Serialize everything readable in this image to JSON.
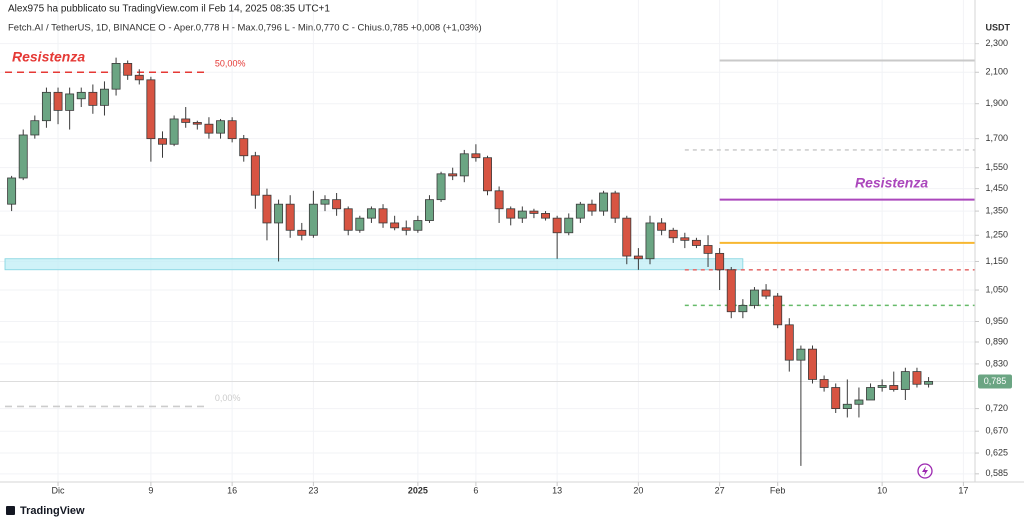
{
  "chart_data": {
    "type": "candlestick",
    "title": "Alex975 ha pubblicato su TradingView.com il Feb 14, 2025 08:35 UTC+1",
    "subtitle": "Fetch.AI / TetherUS, 1D, BINANCE  O - Aper.0,778  H - Max.0,796  L - Min.0,770  C - Chius.0,785  +0,008 (+1,03%)",
    "y_label": "USDT",
    "brand": "TradingView",
    "log": true,
    "grid": true,
    "up_color": "#6ba583",
    "down_color": "#d75442",
    "wick_color": "#3a3a3a",
    "x": [
      "2024-11-27",
      "2024-11-28",
      "2024-11-29",
      "2024-11-30",
      "2024-12-01",
      "2024-12-02",
      "2024-12-03",
      "2024-12-04",
      "2024-12-05",
      "2024-12-06",
      "2024-12-07",
      "2024-12-08",
      "2024-12-09",
      "2024-12-10",
      "2024-12-11",
      "2024-12-12",
      "2024-12-13",
      "2024-12-14",
      "2024-12-15",
      "2024-12-16",
      "2024-12-17",
      "2024-12-18",
      "2024-12-19",
      "2024-12-20",
      "2024-12-21",
      "2024-12-22",
      "2024-12-23",
      "2024-12-24",
      "2024-12-25",
      "2024-12-26",
      "2024-12-27",
      "2024-12-28",
      "2024-12-29",
      "2024-12-30",
      "2024-12-31",
      "2025-01-01",
      "2025-01-02",
      "2025-01-03",
      "2025-01-04",
      "2025-01-05",
      "2025-01-06",
      "2025-01-07",
      "2025-01-08",
      "2025-01-09",
      "2025-01-10",
      "2025-01-11",
      "2025-01-12",
      "2025-01-13",
      "2025-01-14",
      "2025-01-15",
      "2025-01-16",
      "2025-01-17",
      "2025-01-18",
      "2025-01-19",
      "2025-01-20",
      "2025-01-21",
      "2025-01-22",
      "2025-01-23",
      "2025-01-24",
      "2025-01-25",
      "2025-01-26",
      "2025-01-27",
      "2025-01-28",
      "2025-01-29",
      "2025-01-30",
      "2025-01-31",
      "2025-02-01",
      "2025-02-02",
      "2025-02-03",
      "2025-02-04",
      "2025-02-05",
      "2025-02-06",
      "2025-02-07",
      "2025-02-08",
      "2025-02-09",
      "2025-02-10",
      "2025-02-11",
      "2025-02-12",
      "2025-02-13",
      "2025-02-14"
    ],
    "open": [
      1.38,
      1.5,
      1.72,
      1.8,
      1.97,
      1.86,
      1.93,
      1.97,
      1.89,
      1.99,
      2.16,
      2.08,
      2.05,
      1.7,
      1.67,
      1.81,
      1.79,
      1.78,
      1.73,
      1.8,
      1.7,
      1.61,
      1.42,
      1.3,
      1.38,
      1.27,
      1.25,
      1.38,
      1.4,
      1.36,
      1.27,
      1.32,
      1.36,
      1.3,
      1.28,
      1.27,
      1.31,
      1.4,
      1.52,
      1.51,
      1.62,
      1.6,
      1.44,
      1.36,
      1.32,
      1.35,
      1.34,
      1.32,
      1.26,
      1.32,
      1.38,
      1.35,
      1.43,
      1.32,
      1.17,
      1.16,
      1.3,
      1.27,
      1.24,
      1.23,
      1.21,
      1.18,
      1.12,
      0.98,
      1.0,
      1.05,
      1.03,
      0.94,
      0.84,
      0.87,
      0.79,
      0.77,
      0.72,
      0.73,
      0.74,
      0.77,
      0.775,
      0.765,
      0.81,
      0.778
    ],
    "high": [
      1.51,
      1.75,
      1.83,
      2.0,
      2.0,
      2.0,
      2.0,
      2.02,
      2.04,
      2.2,
      2.18,
      2.12,
      2.07,
      1.74,
      1.83,
      1.88,
      1.8,
      1.82,
      1.81,
      1.82,
      1.72,
      1.63,
      1.45,
      1.4,
      1.42,
      1.3,
      1.44,
      1.42,
      1.43,
      1.37,
      1.33,
      1.37,
      1.38,
      1.33,
      1.31,
      1.33,
      1.42,
      1.53,
      1.55,
      1.64,
      1.67,
      1.61,
      1.46,
      1.37,
      1.37,
      1.36,
      1.35,
      1.33,
      1.34,
      1.39,
      1.4,
      1.44,
      1.44,
      1.33,
      1.2,
      1.33,
      1.32,
      1.28,
      1.26,
      1.24,
      1.25,
      1.2,
      1.13,
      1.02,
      1.06,
      1.07,
      1.04,
      0.96,
      0.88,
      0.88,
      0.8,
      0.78,
      0.79,
      0.77,
      0.78,
      0.79,
      0.81,
      0.82,
      0.82,
      0.796
    ],
    "low": [
      1.35,
      1.49,
      1.7,
      1.76,
      1.78,
      1.75,
      1.88,
      1.84,
      1.83,
      1.95,
      2.05,
      2.02,
      1.58,
      1.6,
      1.66,
      1.76,
      1.75,
      1.7,
      1.7,
      1.68,
      1.58,
      1.36,
      1.23,
      1.15,
      1.24,
      1.23,
      1.24,
      1.35,
      1.33,
      1.25,
      1.26,
      1.3,
      1.28,
      1.27,
      1.25,
      1.26,
      1.3,
      1.39,
      1.49,
      1.48,
      1.58,
      1.42,
      1.3,
      1.29,
      1.3,
      1.32,
      1.31,
      1.16,
      1.25,
      1.3,
      1.33,
      1.33,
      1.3,
      1.14,
      1.12,
      1.14,
      1.25,
      1.22,
      1.2,
      1.2,
      1.13,
      1.05,
      0.96,
      0.96,
      0.99,
      1.02,
      0.93,
      0.81,
      0.6,
      0.78,
      0.76,
      0.71,
      0.7,
      0.7,
      0.74,
      0.76,
      0.76,
      0.74,
      0.77,
      0.77
    ],
    "close": [
      1.5,
      1.72,
      1.8,
      1.97,
      1.86,
      1.96,
      1.97,
      1.89,
      1.99,
      2.16,
      2.08,
      2.05,
      1.7,
      1.67,
      1.81,
      1.79,
      1.78,
      1.73,
      1.8,
      1.7,
      1.61,
      1.42,
      1.3,
      1.38,
      1.27,
      1.25,
      1.38,
      1.4,
      1.36,
      1.27,
      1.32,
      1.36,
      1.3,
      1.28,
      1.27,
      1.31,
      1.4,
      1.52,
      1.51,
      1.62,
      1.6,
      1.44,
      1.36,
      1.32,
      1.35,
      1.34,
      1.32,
      1.26,
      1.32,
      1.38,
      1.35,
      1.43,
      1.32,
      1.17,
      1.16,
      1.3,
      1.27,
      1.24,
      1.23,
      1.21,
      1.18,
      1.12,
      0.98,
      1.0,
      1.05,
      1.03,
      0.94,
      0.84,
      0.87,
      0.79,
      0.77,
      0.72,
      0.73,
      0.74,
      0.77,
      0.775,
      0.765,
      0.81,
      0.778,
      0.785
    ],
    "xlim": [
      "2024-11-26",
      "2025-02-18"
    ],
    "xticks": [
      {
        "value": "2024-12-01",
        "label": "Dic"
      },
      {
        "value": "2024-12-09",
        "label": "9"
      },
      {
        "value": "2024-12-16",
        "label": "16"
      },
      {
        "value": "2024-12-23",
        "label": "23"
      },
      {
        "value": "2025-01-01",
        "label": "2025"
      },
      {
        "value": "2025-01-06",
        "label": "6"
      },
      {
        "value": "2025-01-13",
        "label": "13"
      },
      {
        "value": "2025-01-20",
        "label": "20"
      },
      {
        "value": "2025-01-27",
        "label": "27"
      },
      {
        "value": "2025-02-01",
        "label": "Feb"
      },
      {
        "value": "2025-02-10",
        "label": "10"
      },
      {
        "value": "2025-02-17",
        "label": "17"
      }
    ],
    "ylim": [
      0.57,
      2.48
    ],
    "yticks": [
      {
        "value": 2.3,
        "label": "2,300"
      },
      {
        "value": 2.1,
        "label": "2,100"
      },
      {
        "value": 1.9,
        "label": "1,900"
      },
      {
        "value": 1.7,
        "label": "1,700"
      },
      {
        "value": 1.55,
        "label": "1,550"
      },
      {
        "value": 1.45,
        "label": "1,450"
      },
      {
        "value": 1.35,
        "label": "1,350"
      },
      {
        "value": 1.25,
        "label": "1,250"
      },
      {
        "value": 1.15,
        "label": "1,150"
      },
      {
        "value": 1.05,
        "label": "1,050"
      },
      {
        "value": 0.95,
        "label": "0,950"
      },
      {
        "value": 0.89,
        "label": "0,890"
      },
      {
        "value": 0.83,
        "label": "0,830"
      },
      {
        "value": 0.72,
        "label": "0,720"
      },
      {
        "value": 0.67,
        "label": "0,670"
      },
      {
        "value": 0.625,
        "label": "0,625"
      },
      {
        "value": 0.585,
        "label": "0,585"
      }
    ],
    "price_tag": {
      "value": 0.785,
      "label": "0,785"
    },
    "zone": {
      "low": 1.12,
      "high": 1.16,
      "color": "#bfeef5",
      "from": "2024-11-26",
      "to": "2025-01-29"
    },
    "levels": [
      {
        "value": 2.1,
        "color": "#e53935",
        "style": "dashed",
        "from": "2024-11-26",
        "to": "2024-12-14",
        "label": "50,00%"
      },
      {
        "value": 0.725,
        "color": "#cccccc",
        "style": "dashed",
        "from": "2024-11-26",
        "to": "2024-12-14",
        "label": "0,00%"
      },
      {
        "value": 2.18,
        "color": "#c9c9c9",
        "style": "solid",
        "from": "2025-01-27",
        "to": "2025-02-18"
      },
      {
        "value": 1.64,
        "color": "#cfcfcf",
        "style": "dashed",
        "from": "2025-01-24",
        "to": "2025-02-18"
      },
      {
        "value": 1.4,
        "color": "#ab47bc",
        "style": "solid",
        "from": "2025-01-27",
        "to": "2025-02-18"
      },
      {
        "value": 1.22,
        "color": "#f7b731",
        "style": "solid",
        "from": "2025-01-27",
        "to": "2025-02-18"
      },
      {
        "value": 1.12,
        "color": "#e57373",
        "style": "dashed",
        "from": "2025-01-24",
        "to": "2025-02-18"
      },
      {
        "value": 1.0,
        "color": "#66bb6a",
        "style": "dashed",
        "from": "2025-01-24",
        "to": "2025-02-18"
      }
    ],
    "annotations": [
      {
        "text": "Resistenza",
        "color": "#e53935"
      },
      {
        "text": "Resistenza",
        "color": "#ab47bc"
      }
    ]
  }
}
